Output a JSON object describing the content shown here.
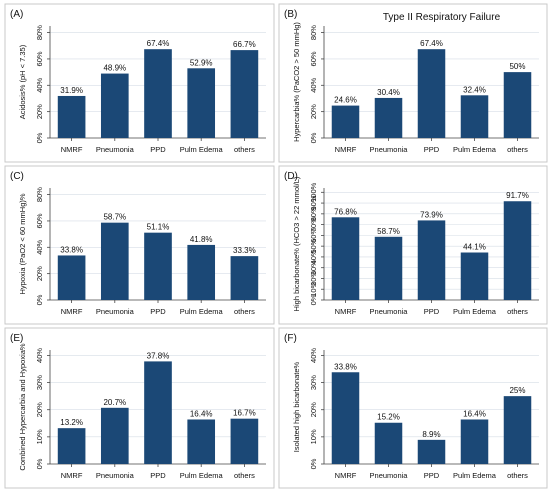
{
  "figure": {
    "panels": [
      {
        "id": "A",
        "label": "(A)",
        "title": "",
        "ylabel": "Acidosis% (pH < 7.35)",
        "yticks": [
          0,
          20,
          40,
          60,
          80
        ],
        "ytick_labels": [
          "0%",
          "20%",
          "40%",
          "60%",
          "80%"
        ]
      },
      {
        "id": "B",
        "label": "(B)",
        "title": "Type II Respiratory Failure",
        "ylabel": "Hypercarbia% (PaCO2 > 50 mmHg)",
        "yticks": [
          0,
          20,
          40,
          60,
          80
        ],
        "ytick_labels": [
          "0%",
          "20%",
          "40%",
          "60%",
          "80%"
        ]
      },
      {
        "id": "C",
        "label": "(C)",
        "title": "",
        "ylabel": "Hypoxia (PaO2 < 60 mmHg)%",
        "yticks": [
          0,
          20,
          40,
          60,
          80
        ],
        "ytick_labels": [
          "0%",
          "20%",
          "40%",
          "60%",
          "80%"
        ]
      },
      {
        "id": "D",
        "label": "(D)",
        "title": "",
        "ylabel": "High bicarbonate% (HCO3 > 22 mmol/L)",
        "yticks": [
          0,
          10,
          20,
          30,
          40,
          50,
          60,
          70,
          80,
          90,
          100
        ],
        "ytick_labels": [
          "0%",
          "10%",
          "20%",
          "30%",
          "40%",
          "50%",
          "60%",
          "70%",
          "80%",
          "90%",
          "100%"
        ]
      },
      {
        "id": "E",
        "label": "(E)",
        "title": "",
        "ylabel": "Combined Hypercarbia and Hypoxia%",
        "yticks": [
          0,
          10,
          20,
          30,
          40
        ],
        "ytick_labels": [
          "0%",
          "10%",
          "20%",
          "30%",
          "40%"
        ]
      },
      {
        "id": "F",
        "label": "(F)",
        "title": "",
        "ylabel": "Isolated high bicarbonate%",
        "yticks": [
          0,
          10,
          20,
          30,
          40
        ],
        "ytick_labels": [
          "0%",
          "10%",
          "20%",
          "30%",
          "40%"
        ]
      }
    ]
  },
  "chart_data": [
    {
      "type": "bar",
      "panel": "A",
      "title": "",
      "categories": [
        "NMRF",
        "Pneumonia",
        "PPD",
        "Pulm Edema",
        "others"
      ],
      "values": [
        31.9,
        48.9,
        67.4,
        52.9,
        66.7
      ],
      "value_labels": [
        "31.9%",
        "48.9%",
        "67.4%",
        "52.9%",
        "66.7%"
      ],
      "xlabel": "",
      "ylabel": "Acidosis% (pH < 7.35)",
      "ylim": [
        0,
        85
      ],
      "grid": true,
      "bar_color": "#1b4876"
    },
    {
      "type": "bar",
      "panel": "B",
      "title": "Type II Respiratory Failure",
      "categories": [
        "NMRF",
        "Pneumonia",
        "PPD",
        "Pulm Edema",
        "others"
      ],
      "values": [
        24.6,
        30.4,
        67.4,
        32.4,
        50
      ],
      "value_labels": [
        "24.6%",
        "30.4%",
        "67.4%",
        "32.4%",
        "50%"
      ],
      "xlabel": "",
      "ylabel": "Hypercarbia% (PaCO2 > 50 mmHg)",
      "ylim": [
        0,
        85
      ],
      "grid": true,
      "bar_color": "#1b4876"
    },
    {
      "type": "bar",
      "panel": "C",
      "title": "",
      "categories": [
        "NMRF",
        "Pneumonia",
        "PPD",
        "Pulm Edema",
        "others"
      ],
      "values": [
        33.8,
        58.7,
        51.1,
        41.8,
        33.3
      ],
      "value_labels": [
        "33.8%",
        "58.7%",
        "51.1%",
        "41.8%",
        "33.3%"
      ],
      "xlabel": "",
      "ylabel": "Hypoxia (PaO2 < 60 mmHg)%",
      "ylim": [
        0,
        85
      ],
      "grid": true,
      "bar_color": "#1b4876"
    },
    {
      "type": "bar",
      "panel": "D",
      "title": "",
      "categories": [
        "NMRF",
        "Pneumonia",
        "PPD",
        "Pulm Edema",
        "others"
      ],
      "values": [
        76.8,
        58.7,
        73.9,
        44.1,
        91.7
      ],
      "value_labels": [
        "76.8%",
        "58.7%",
        "73.9%",
        "44.1%",
        "91.7%"
      ],
      "xlabel": "",
      "ylabel": "High bicarbonate% (HCO3 > 22 mmol/L)",
      "ylim": [
        0,
        104
      ],
      "grid": true,
      "bar_color": "#1b4876"
    },
    {
      "type": "bar",
      "panel": "E",
      "title": "",
      "categories": [
        "NMRF",
        "Pneumonia",
        "PPD",
        "Pulm Edema",
        "others"
      ],
      "values": [
        13.2,
        20.7,
        37.8,
        16.4,
        16.7
      ],
      "value_labels": [
        "13.2%",
        "20.7%",
        "37.8%",
        "16.4%",
        "16.7%"
      ],
      "xlabel": "",
      "ylabel": "Combined Hypercarbia and Hypoxia%",
      "ylim": [
        0,
        42
      ],
      "grid": true,
      "bar_color": "#1b4876"
    },
    {
      "type": "bar",
      "panel": "F",
      "title": "",
      "categories": [
        "NMRF",
        "Pneumonia",
        "PPD",
        "Pulm Edema",
        "others"
      ],
      "values": [
        33.8,
        15.2,
        8.9,
        16.4,
        25
      ],
      "value_labels": [
        "33.8%",
        "15.2%",
        "8.9%",
        "16.4%",
        "25%"
      ],
      "xlabel": "",
      "ylabel": "Isolated high bicarbonate%",
      "ylim": [
        0,
        42
      ],
      "grid": true,
      "bar_color": "#1b4876"
    }
  ]
}
